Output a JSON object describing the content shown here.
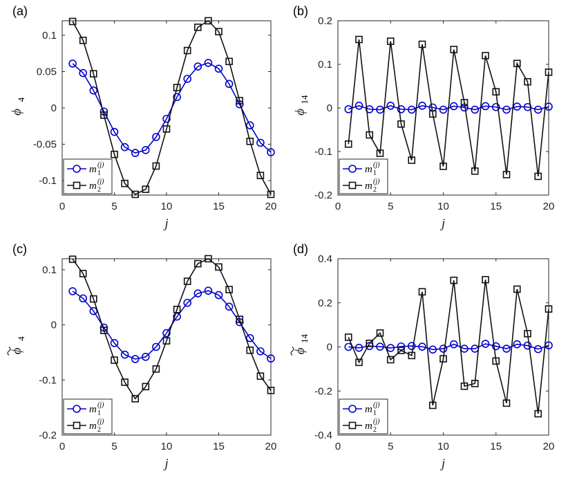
{
  "chart_data": [
    {
      "panel_label": "(a)",
      "type": "line",
      "xlabel": "j",
      "ylabel": "ϕ",
      "ylabel_sub": "4",
      "ylabel_tilde": false,
      "xlim": [
        0,
        20
      ],
      "ylim": [
        -0.12,
        0.12
      ],
      "xticks": [
        "0",
        "5",
        "10",
        "15",
        "20"
      ],
      "yticks": [
        -0.1,
        -0.05,
        0,
        0.05,
        0.1
      ],
      "ytick_labels": [
        "-0.1",
        "-0.05",
        "0",
        "0.05",
        "0.1"
      ],
      "legend_position": "bottom-left",
      "x": [
        1,
        2,
        3,
        4,
        5,
        6,
        7,
        8,
        9,
        10,
        11,
        12,
        13,
        14,
        15,
        16,
        17,
        18,
        19,
        20
      ],
      "series": [
        {
          "name": "m1(j)",
          "legend_main": "m",
          "legend_sub": "1",
          "legend_sup": "(j)",
          "marker": "circle",
          "color": "#0000cc",
          "values": [
            0.061,
            0.048,
            0.024,
            -0.005,
            -0.033,
            -0.054,
            -0.062,
            -0.058,
            -0.04,
            -0.015,
            0.015,
            0.04,
            0.057,
            0.062,
            0.054,
            0.033,
            0.005,
            -0.024,
            -0.048,
            -0.061
          ]
        },
        {
          "name": "m2(j)",
          "legend_main": "m",
          "legend_sub": "2",
          "legend_sup": "(j)",
          "marker": "square",
          "color": "#111111",
          "values": [
            0.119,
            0.093,
            0.047,
            -0.01,
            -0.064,
            -0.104,
            -0.119,
            -0.112,
            -0.08,
            -0.029,
            0.028,
            0.079,
            0.111,
            0.12,
            0.105,
            0.064,
            0.01,
            -0.046,
            -0.093,
            -0.119
          ]
        }
      ]
    },
    {
      "panel_label": "(b)",
      "type": "line",
      "xlabel": "j",
      "ylabel": "ϕ",
      "ylabel_sub": "14",
      "ylabel_tilde": false,
      "xlim": [
        0,
        20
      ],
      "ylim": [
        -0.2,
        0.2
      ],
      "xticks": [
        "0",
        "5",
        "10",
        "15",
        "20"
      ],
      "yticks": [
        -0.2,
        -0.1,
        0,
        0.1,
        0.2
      ],
      "ytick_labels": [
        "-0.2",
        "-0.1",
        "0",
        "0.1",
        "0.2"
      ],
      "legend_position": "bottom-left",
      "x": [
        1,
        2,
        3,
        4,
        5,
        6,
        7,
        8,
        9,
        10,
        11,
        12,
        13,
        14,
        15,
        16,
        17,
        18,
        19,
        20
      ],
      "series": [
        {
          "name": "m1(j)",
          "legend_main": "m",
          "legend_sub": "1",
          "legend_sup": "(j)",
          "marker": "circle",
          "color": "#0000cc",
          "values": [
            -0.003,
            0.005,
            -0.003,
            -0.004,
            0.005,
            -0.003,
            -0.004,
            0.005,
            0.001,
            -0.004,
            0.004,
            0.001,
            -0.004,
            0.004,
            0.002,
            -0.004,
            0.003,
            0.002,
            -0.004,
            0.003
          ]
        },
        {
          "name": "m2(j)",
          "legend_main": "m",
          "legend_sub": "2",
          "legend_sup": "(j)",
          "marker": "square",
          "color": "#111111",
          "values": [
            -0.083,
            0.157,
            -0.062,
            -0.104,
            0.153,
            -0.037,
            -0.12,
            0.146,
            -0.014,
            -0.134,
            0.134,
            0.012,
            -0.145,
            0.12,
            0.037,
            -0.153,
            0.102,
            0.06,
            -0.157,
            0.082
          ]
        }
      ]
    },
    {
      "panel_label": "(c)",
      "type": "line",
      "xlabel": "j",
      "ylabel": "ϕ",
      "ylabel_sub": "4",
      "ylabel_tilde": true,
      "xlim": [
        0,
        20
      ],
      "ylim": [
        -0.2,
        0.12
      ],
      "xticks": [
        "0",
        "5",
        "10",
        "15",
        "20"
      ],
      "yticks": [
        -0.2,
        -0.1,
        0,
        0.1
      ],
      "ytick_labels": [
        "-0.2",
        "-0.1",
        "0",
        "0.1"
      ],
      "legend_position": "bottom-left",
      "x": [
        1,
        2,
        3,
        4,
        5,
        6,
        7,
        8,
        9,
        10,
        11,
        12,
        13,
        14,
        15,
        16,
        17,
        18,
        19,
        20
      ],
      "series": [
        {
          "name": "m1(j)",
          "legend_main": "m",
          "legend_sub": "1",
          "legend_sup": "(j)",
          "marker": "circle",
          "color": "#0000cc",
          "values": [
            0.061,
            0.048,
            0.025,
            -0.005,
            -0.033,
            -0.054,
            -0.062,
            -0.058,
            -0.04,
            -0.015,
            0.015,
            0.04,
            0.057,
            0.062,
            0.054,
            0.033,
            0.005,
            -0.024,
            -0.048,
            -0.061
          ]
        },
        {
          "name": "m2(j)",
          "legend_main": "m",
          "legend_sub": "2",
          "legend_sup": "(j)",
          "marker": "square",
          "color": "#111111",
          "values": [
            0.119,
            0.093,
            0.047,
            -0.01,
            -0.064,
            -0.104,
            -0.134,
            -0.112,
            -0.08,
            -0.029,
            0.028,
            0.079,
            0.111,
            0.12,
            0.105,
            0.064,
            0.01,
            -0.046,
            -0.093,
            -0.119
          ]
        }
      ]
    },
    {
      "panel_label": "(d)",
      "type": "line",
      "xlabel": "j",
      "ylabel": "ϕ",
      "ylabel_sub": "14",
      "ylabel_tilde": true,
      "xlim": [
        0,
        20
      ],
      "ylim": [
        -0.4,
        0.4
      ],
      "xticks": [
        "0",
        "5",
        "10",
        "15",
        "20"
      ],
      "yticks": [
        -0.4,
        -0.2,
        0,
        0.2,
        0.4
      ],
      "ytick_labels": [
        "-0.4",
        "-0.2",
        "0",
        "0.2",
        "0.4"
      ],
      "legend_position": "bottom-left",
      "x": [
        1,
        2,
        3,
        4,
        5,
        6,
        7,
        8,
        9,
        10,
        11,
        12,
        13,
        14,
        15,
        16,
        17,
        18,
        19,
        20
      ],
      "series": [
        {
          "name": "m1(j)",
          "legend_main": "m",
          "legend_sub": "1",
          "legend_sup": "(j)",
          "marker": "circle",
          "color": "#0000cc",
          "values": [
            0.0,
            -0.004,
            0.004,
            0.001,
            -0.005,
            0.002,
            0.004,
            0.001,
            -0.012,
            -0.008,
            0.012,
            -0.008,
            -0.008,
            0.014,
            0.003,
            -0.008,
            0.012,
            0.006,
            -0.01,
            0.007
          ]
        },
        {
          "name": "m2(j)",
          "legend_main": "m",
          "legend_sub": "2",
          "legend_sup": "(j)",
          "marker": "square",
          "color": "#111111",
          "values": [
            0.044,
            -0.07,
            0.016,
            0.063,
            -0.058,
            -0.016,
            -0.039,
            0.25,
            -0.265,
            -0.054,
            0.302,
            -0.178,
            -0.166,
            0.305,
            -0.064,
            -0.255,
            0.262,
            0.06,
            -0.303,
            0.172
          ]
        }
      ]
    }
  ]
}
